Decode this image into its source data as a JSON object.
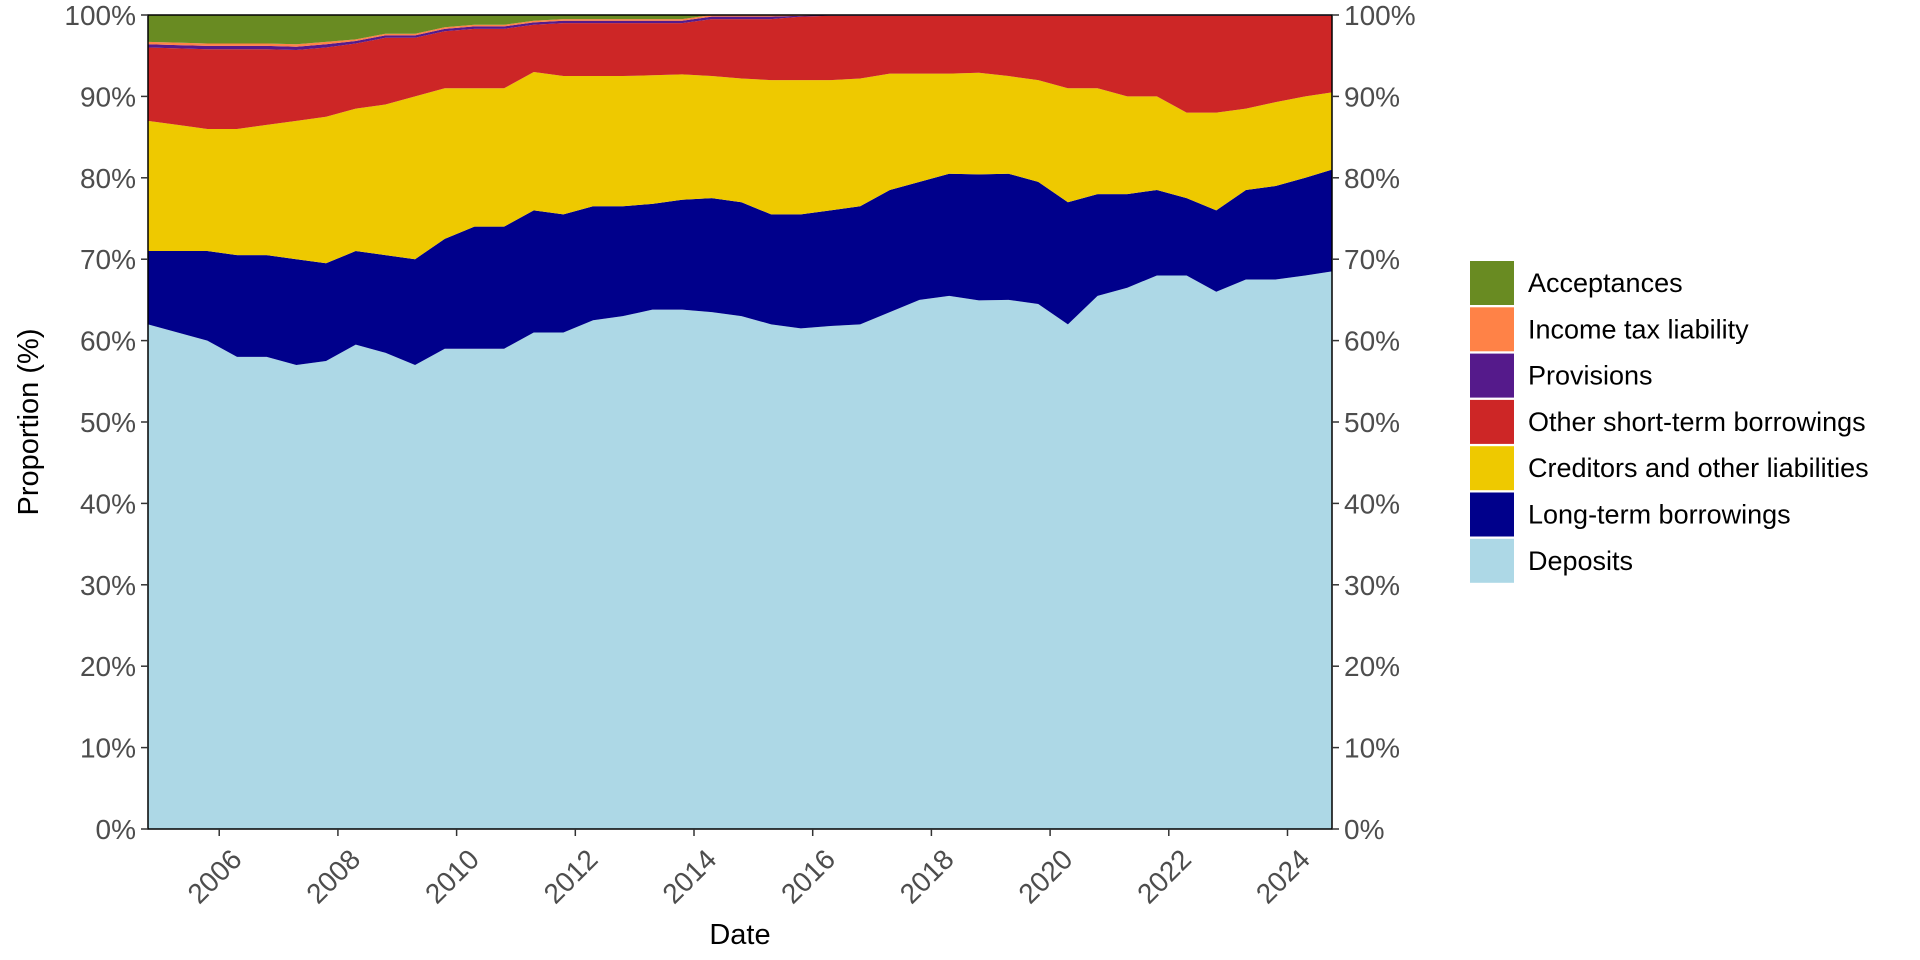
{
  "chart_data": {
    "type": "area",
    "stacking": "percent",
    "xlabel": "Date",
    "ylabel": "Proportion (%)",
    "xlim": [
      2004.8,
      2024.75
    ],
    "ylim": [
      0,
      100
    ],
    "x_ticks": [
      2006,
      2008,
      2010,
      2012,
      2014,
      2016,
      2018,
      2020,
      2022,
      2024
    ],
    "x_tick_labels": [
      "2006",
      "2008",
      "2010",
      "2012",
      "2014",
      "2016",
      "2018",
      "2020",
      "2022",
      "2024"
    ],
    "y_ticks": [
      0,
      10,
      20,
      30,
      40,
      50,
      60,
      70,
      80,
      90,
      100
    ],
    "y_tick_labels": [
      "0%",
      "10%",
      "20%",
      "30%",
      "40%",
      "50%",
      "60%",
      "70%",
      "80%",
      "90%",
      "100%"
    ],
    "secondary_y_axis": true,
    "grid": false,
    "legend_position": "right",
    "x": [
      2004.8,
      2005.3,
      2005.8,
      2006.3,
      2006.8,
      2007.3,
      2007.8,
      2008.3,
      2008.8,
      2009.3,
      2009.8,
      2010.3,
      2010.8,
      2011.3,
      2011.8,
      2012.3,
      2012.8,
      2013.3,
      2013.8,
      2014.3,
      2014.8,
      2015.3,
      2015.8,
      2016.3,
      2016.8,
      2017.3,
      2017.8,
      2018.3,
      2018.8,
      2019.3,
      2019.8,
      2020.3,
      2020.8,
      2021.3,
      2021.8,
      2022.3,
      2022.8,
      2023.3,
      2023.8,
      2024.3,
      2024.75
    ],
    "series": [
      {
        "name": "Deposits",
        "color": "#add8e6",
        "values": [
          62.0,
          61.0,
          60.0,
          58.0,
          58.0,
          57.0,
          57.5,
          59.5,
          58.5,
          57.0,
          59.0,
          59.0,
          59.0,
          61.0,
          61.0,
          62.5,
          63.0,
          63.8,
          63.8,
          63.5,
          63.0,
          62.0,
          61.5,
          61.8,
          62.0,
          63.5,
          65.0,
          65.5,
          65.0,
          65.0,
          64.5,
          62.0,
          65.5,
          66.5,
          68.0,
          68.0,
          66.0,
          67.5,
          67.5,
          68.0,
          68.5
        ]
      },
      {
        "name": "Long-term borrowings",
        "color": "#00008b",
        "values": [
          9.0,
          10.0,
          11.0,
          12.5,
          12.5,
          13.0,
          12.0,
          11.5,
          12.0,
          13.0,
          13.5,
          15.0,
          15.0,
          15.0,
          14.5,
          14.0,
          13.5,
          13.0,
          13.5,
          14.0,
          14.0,
          13.5,
          14.0,
          14.2,
          14.5,
          15.0,
          14.5,
          15.0,
          15.5,
          15.5,
          15.0,
          15.0,
          12.5,
          11.5,
          10.5,
          9.5,
          10.0,
          11.0,
          11.5,
          12.0,
          12.5
        ]
      },
      {
        "name": "Creditors and other liabilities",
        "color": "#eec900",
        "values": [
          16.0,
          15.5,
          15.0,
          15.5,
          16.0,
          17.0,
          18.0,
          17.5,
          18.5,
          20.0,
          18.5,
          17.0,
          17.0,
          17.0,
          17.0,
          16.0,
          16.0,
          15.8,
          15.4,
          15.0,
          15.2,
          16.5,
          16.5,
          16.0,
          15.7,
          14.3,
          13.3,
          12.3,
          12.5,
          12.0,
          12.5,
          14.0,
          13.0,
          12.0,
          11.5,
          10.5,
          12.0,
          10.0,
          10.3,
          10.0,
          9.5
        ]
      },
      {
        "name": "Other short-term borrowings",
        "color": "#cd2626",
        "values": [
          9.0,
          9.4,
          9.8,
          9.8,
          9.3,
          8.7,
          8.5,
          8.0,
          8.2,
          7.2,
          7.0,
          7.3,
          7.3,
          5.8,
          6.5,
          6.5,
          6.5,
          6.4,
          6.3,
          7.0,
          7.3,
          7.5,
          7.8,
          7.9,
          7.7,
          7.1,
          7.1,
          7.1,
          7.0,
          7.4,
          7.9,
          8.9,
          8.9,
          9.9,
          9.9,
          11.9,
          11.9,
          11.4,
          10.6,
          9.9,
          9.4
        ]
      },
      {
        "name": "Provisions",
        "color": "#551a8b",
        "values": [
          0.4,
          0.4,
          0.4,
          0.4,
          0.4,
          0.4,
          0.4,
          0.3,
          0.3,
          0.3,
          0.3,
          0.3,
          0.3,
          0.3,
          0.3,
          0.3,
          0.3,
          0.3,
          0.3,
          0.3,
          0.3,
          0.3,
          0.1,
          0.1,
          0.1,
          0.1,
          0.1,
          0.1,
          0.1,
          0.1,
          0.1,
          0.1,
          0.1,
          0.1,
          0.1,
          0.1,
          0.1,
          0.1,
          0.1,
          0.1,
          0.1
        ]
      },
      {
        "name": "Income tax liability",
        "color": "#ff8247",
        "values": [
          0.3,
          0.3,
          0.3,
          0.3,
          0.3,
          0.3,
          0.3,
          0.2,
          0.2,
          0.2,
          0.2,
          0.2,
          0.2,
          0.2,
          0.2,
          0.2,
          0.2,
          0.2,
          0.2,
          0.2,
          0.2,
          0.2,
          0.1,
          0.0,
          0.0,
          0.0,
          0.0,
          0.0,
          0.0,
          0.0,
          0.0,
          0.0,
          0.0,
          0.0,
          0.0,
          0.0,
          0.0,
          0.0,
          0.0,
          0.0,
          0.0
        ]
      },
      {
        "name": "Acceptances",
        "color": "#698b22",
        "values": [
          3.3,
          3.4,
          3.5,
          3.5,
          3.5,
          3.6,
          3.3,
          3.0,
          2.3,
          2.3,
          1.5,
          1.2,
          1.2,
          0.7,
          0.5,
          0.5,
          0.5,
          0.5,
          0.5,
          0.0,
          0.0,
          0.0,
          0.0,
          0.0,
          0.0,
          0.0,
          0.0,
          0.0,
          0.0,
          0.0,
          0.0,
          0.0,
          0.0,
          0.0,
          0.0,
          0.0,
          0.0,
          0.0,
          0.0,
          0.0,
          0.0
        ]
      }
    ],
    "legend": [
      "Acceptances",
      "Income tax liability",
      "Provisions",
      "Other short-term borrowings",
      "Creditors and other liabilities",
      "Long-term borrowings",
      "Deposits"
    ]
  }
}
